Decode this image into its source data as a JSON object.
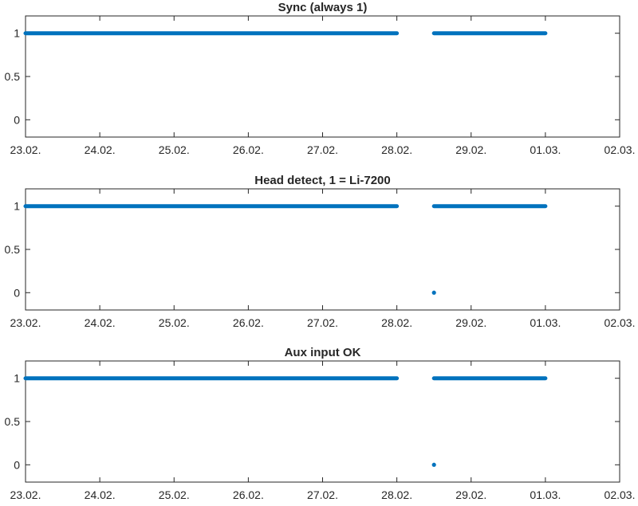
{
  "colors": {
    "marker": "#0072BD",
    "axis": "#262626",
    "background": "#ffffff"
  },
  "chart_data": [
    {
      "type": "scatter",
      "title": "Sync (always 1)",
      "xlabel": "",
      "ylabel": "",
      "xlim": [
        "23.02.",
        "02.03."
      ],
      "ylim": [
        -0.2,
        1.2
      ],
      "xticklabels": [
        "23.02.",
        "24.02.",
        "25.02.",
        "26.02.",
        "27.02.",
        "28.02.",
        "29.02.",
        "01.03.",
        "02.03."
      ],
      "yticklabels": [
        "0",
        "0.5",
        "1"
      ],
      "yticks": [
        0,
        0.5,
        1
      ],
      "grid": false,
      "legend": "none",
      "series": [
        {
          "segments": [
            {
              "x_start": "23.02. 00:00",
              "x_end": "28.02. 00:00",
              "y": 1
            },
            {
              "x_start": "28.02. 12:00",
              "x_end": "01.03. 00:00",
              "y": 1
            }
          ],
          "points": []
        }
      ]
    },
    {
      "type": "scatter",
      "title": "Head detect, 1 = Li-7200",
      "xlabel": "",
      "ylabel": "",
      "xlim": [
        "23.02.",
        "02.03."
      ],
      "ylim": [
        -0.2,
        1.2
      ],
      "xticklabels": [
        "23.02.",
        "24.02.",
        "25.02.",
        "26.02.",
        "27.02.",
        "28.02.",
        "29.02.",
        "01.03.",
        "02.03."
      ],
      "yticklabels": [
        "0",
        "0.5",
        "1"
      ],
      "yticks": [
        0,
        0.5,
        1
      ],
      "grid": false,
      "legend": "none",
      "series": [
        {
          "segments": [
            {
              "x_start": "23.02. 00:00",
              "x_end": "28.02. 00:00",
              "y": 1
            },
            {
              "x_start": "28.02. 12:00",
              "x_end": "01.03. 00:00",
              "y": 1
            }
          ],
          "points": [
            {
              "x": "28.02. 12:00",
              "y": 0
            }
          ]
        }
      ]
    },
    {
      "type": "scatter",
      "title": "Aux input OK",
      "xlabel": "",
      "ylabel": "",
      "xlim": [
        "23.02.",
        "02.03."
      ],
      "ylim": [
        -0.2,
        1.2
      ],
      "xticklabels": [
        "23.02.",
        "24.02.",
        "25.02.",
        "26.02.",
        "27.02.",
        "28.02.",
        "29.02.",
        "01.03.",
        "02.03."
      ],
      "yticklabels": [
        "0",
        "0.5",
        "1"
      ],
      "yticks": [
        0,
        0.5,
        1
      ],
      "grid": false,
      "legend": "none",
      "series": [
        {
          "segments": [
            {
              "x_start": "23.02. 00:00",
              "x_end": "28.02. 00:00",
              "y": 1
            },
            {
              "x_start": "28.02. 12:00",
              "x_end": "01.03. 00:00",
              "y": 1
            }
          ],
          "points": [
            {
              "x": "28.02. 12:00",
              "y": 0
            }
          ]
        }
      ]
    }
  ]
}
